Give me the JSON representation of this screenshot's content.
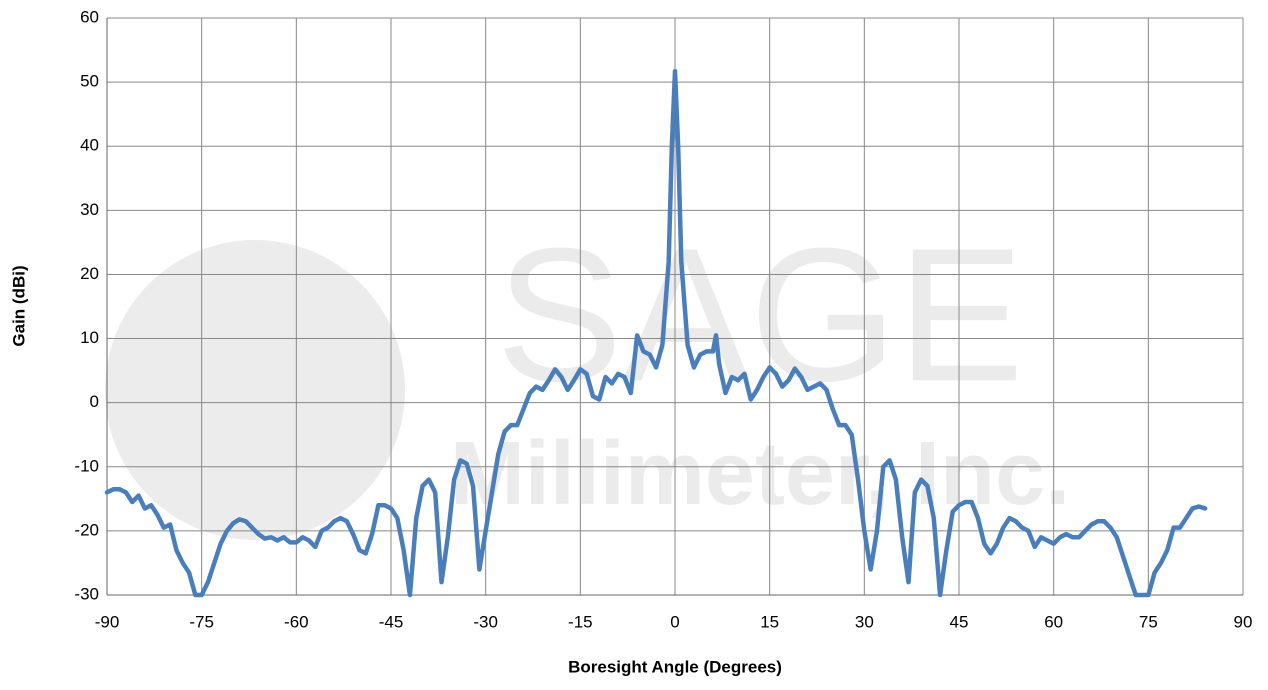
{
  "chart_data": {
    "type": "line",
    "xlabel": "Boresight Angle (Degrees)",
    "ylabel": "Gain (dBi)",
    "watermark": [
      "SAGE",
      "Millimeter, Inc."
    ],
    "xlim": [
      -90,
      90
    ],
    "xticks": [
      -90,
      -75,
      -60,
      -45,
      -30,
      -15,
      0,
      15,
      30,
      45,
      60,
      75,
      90
    ],
    "ylim": [
      -30,
      60
    ],
    "yticks": [
      -30,
      -20,
      -10,
      0,
      10,
      20,
      30,
      40,
      50,
      60
    ],
    "grid": true,
    "series": [
      {
        "color": "#4a7ebb",
        "x": [
          -90,
          -89,
          -88,
          -87,
          -86,
          -85,
          -84,
          -83,
          -82,
          -81,
          -80,
          -79,
          -78,
          -77,
          -76,
          -75,
          -74,
          -73,
          -72,
          -71,
          -70,
          -69,
          -68,
          -67,
          -66,
          -65,
          -64,
          -63,
          -62,
          -61,
          -60,
          -59,
          -58,
          -57,
          -56,
          -55,
          -54,
          -53,
          -52,
          -51,
          -50,
          -49,
          -48,
          -47,
          -46,
          -45,
          -44,
          -43,
          -42,
          -41,
          -40,
          -39,
          -38,
          -37,
          -36,
          -35,
          -34,
          -33,
          -32,
          -31,
          -30,
          -29,
          -28,
          -27,
          -26,
          -25,
          -24,
          -23,
          -22,
          -21,
          -20,
          -19,
          -18,
          -17,
          -16,
          -15,
          -14,
          -13,
          -12,
          -11,
          -10,
          -9,
          -8,
          -7,
          -6,
          -5,
          -4,
          -3,
          -2,
          -1,
          -0.5,
          0,
          0.5,
          1,
          2,
          3,
          4,
          5,
          6,
          6.5,
          7,
          8,
          9,
          10,
          11,
          12,
          13,
          14,
          15,
          16,
          17,
          18,
          19,
          20,
          21,
          22,
          23,
          24,
          25,
          26,
          27,
          28,
          29,
          30,
          31,
          32,
          33,
          34,
          35,
          36,
          37,
          38,
          39,
          40,
          41,
          42,
          43,
          44,
          45,
          46,
          47,
          48,
          49,
          50,
          51,
          52,
          53,
          54,
          55,
          56,
          57,
          58,
          59,
          60,
          61,
          62,
          63,
          64,
          65,
          66,
          67,
          68,
          69,
          70,
          71,
          72,
          73,
          74,
          75,
          76,
          77,
          78,
          79,
          80,
          81,
          82,
          83,
          84
        ],
        "values": [
          -14,
          -13.5,
          -13.5,
          -14,
          -15.5,
          -14.5,
          -16.5,
          -16,
          -17.5,
          -19.5,
          -19,
          -23,
          -25,
          -26.5,
          -30,
          -30,
          -28,
          -25,
          -22,
          -20,
          -18.8,
          -18.2,
          -18.5,
          -19.5,
          -20.5,
          -21.2,
          -21,
          -21.5,
          -21,
          -21.8,
          -21.8,
          -21,
          -21.5,
          -22.5,
          -20,
          -19.5,
          -18.5,
          -18,
          -18.5,
          -20.5,
          -23,
          -23.5,
          -20.5,
          -16,
          -16,
          -16.5,
          -18,
          -23,
          -30,
          -18,
          -13,
          -12,
          -14,
          -28,
          -21,
          -12,
          -9,
          -9.5,
          -13,
          -26,
          -20,
          -14,
          -8,
          -4.5,
          -3.5,
          -3.5,
          -1,
          1.5,
          2.5,
          2,
          3.5,
          5.2,
          4,
          2,
          3.5,
          5.2,
          4.5,
          1,
          0.5,
          4,
          3,
          4.5,
          4,
          1.5,
          10.5,
          8,
          7.5,
          5.5,
          9,
          22,
          40,
          51.7,
          40,
          22,
          9,
          5.5,
          7.5,
          8,
          8,
          10.5,
          6,
          1.5,
          4,
          3.5,
          4.5,
          0.5,
          2,
          4,
          5.5,
          4.5,
          2.5,
          3.5,
          5.3,
          4,
          2,
          2.5,
          3,
          2,
          -1,
          -3.5,
          -3.5,
          -5,
          -12,
          -20,
          -26,
          -20,
          -10,
          -9,
          -12,
          -21,
          -28,
          -14,
          -12,
          -13,
          -18,
          -30,
          -23,
          -17,
          -16,
          -15.5,
          -15.5,
          -18,
          -22,
          -23.5,
          -22,
          -19.5,
          -18,
          -18.5,
          -19.5,
          -20,
          -22.5,
          -21,
          -21.5,
          -22,
          -21,
          -20.5,
          -21,
          -21,
          -20,
          -19,
          -18.5,
          -18.5,
          -19.5,
          -21,
          -24,
          -27,
          -30,
          -30,
          -30,
          -26.5,
          -25,
          -23,
          -19.5,
          -19.5,
          -18,
          -16.5,
          -16.2,
          -16.5
        ]
      }
    ]
  }
}
